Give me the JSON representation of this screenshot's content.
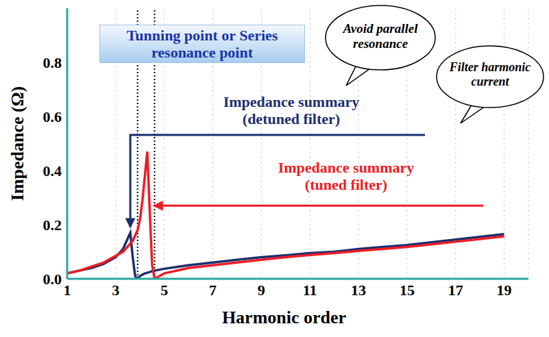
{
  "chart_data": {
    "type": "line",
    "xlabel": "Harmonic order",
    "ylabel": "Impedance (Ω)",
    "xlim": [
      1,
      20
    ],
    "xticks": [
      1,
      3,
      5,
      7,
      9,
      11,
      13,
      15,
      17,
      19
    ],
    "ylim": [
      0,
      1
    ],
    "yticks": [
      {
        "value": 0,
        "label": "0.0"
      },
      0.2,
      0.4,
      0.6,
      0.8
    ],
    "grid": true,
    "x": [
      1,
      1.5,
      2,
      2.5,
      3,
      3.3,
      3.5,
      3.6,
      3.7,
      3.8,
      3.9,
      4,
      4.1,
      4.2,
      4.3,
      4.4,
      4.5,
      4.6,
      4.7,
      5,
      6,
      7,
      8,
      9,
      10,
      11,
      12,
      13,
      14,
      15,
      16,
      17,
      18,
      19
    ],
    "series": [
      {
        "name": "Impedance summary (detuned filter)",
        "color": "#1b2f6e",
        "line_style": "solid",
        "values": [
          0.02,
          0.03,
          0.04,
          0.055,
          0.08,
          0.11,
          0.15,
          0.17,
          0.08,
          0.01,
          0.0,
          0.01,
          0.015,
          0.02,
          0.022,
          0.025,
          0.028,
          0.03,
          0.032,
          0.037,
          0.05,
          0.06,
          0.07,
          0.08,
          0.087,
          0.095,
          0.1,
          0.11,
          0.118,
          0.125,
          0.135,
          0.145,
          0.155,
          0.165
        ]
      },
      {
        "name": "Impedance summary (tuned filter)",
        "color": "#ee1c25",
        "line_style": "solid",
        "values": [
          0.02,
          0.03,
          0.045,
          0.06,
          0.085,
          0.1,
          0.12,
          0.13,
          0.14,
          0.16,
          0.18,
          0.22,
          0.29,
          0.38,
          0.47,
          0.25,
          0.05,
          0.0,
          0.005,
          0.02,
          0.04,
          0.05,
          0.06,
          0.07,
          0.08,
          0.088,
          0.095,
          0.103,
          0.11,
          0.118,
          0.127,
          0.137,
          0.147,
          0.157
        ]
      }
    ],
    "tuning_points": [
      3.9,
      4.6
    ],
    "annotations": [
      "Tunning point or Series resonance point",
      "Avoid parallel resonance",
      "Filter harmonic current"
    ]
  }
}
